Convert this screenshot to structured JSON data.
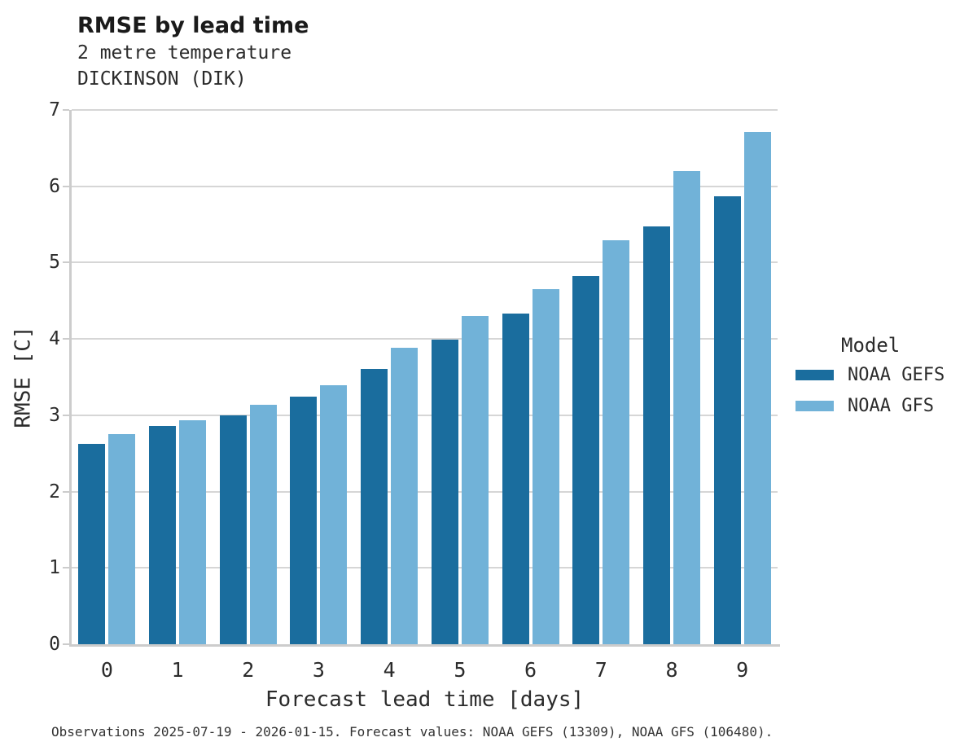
{
  "header": {
    "title": "RMSE by lead time",
    "subtitle1": "2 metre temperature",
    "subtitle2": "DICKINSON (DIK)"
  },
  "chart_data": {
    "type": "bar",
    "title": "RMSE by lead time",
    "subtitle": [
      "2 metre temperature",
      "DICKINSON (DIK)"
    ],
    "categories": [
      "0",
      "1",
      "2",
      "3",
      "4",
      "5",
      "6",
      "7",
      "8",
      "9"
    ],
    "series": [
      {
        "name": "NOAA GEFS",
        "color": "#1a6d9e",
        "values": [
          2.62,
          2.86,
          3.0,
          3.24,
          3.61,
          3.99,
          4.33,
          4.82,
          5.47,
          5.87
        ]
      },
      {
        "name": "NOAA GFS",
        "color": "#71b2d8",
        "values": [
          2.75,
          2.93,
          3.14,
          3.39,
          3.88,
          4.3,
          4.65,
          5.29,
          6.2,
          6.71
        ]
      }
    ],
    "xlabel": "Forecast lead time [days]",
    "ylabel": "RMSE [C]",
    "ylim": [
      0,
      7
    ],
    "yticks": [
      0,
      1,
      2,
      3,
      4,
      5,
      6,
      7
    ],
    "grid": true,
    "gridline_color": "#d6d6d6",
    "axis_spine_color": "#cccccc",
    "legend_title": "Model",
    "legend_position": "right"
  },
  "legend": {
    "title": "Model",
    "items": [
      {
        "label": "NOAA GEFS",
        "color": "#1a6d9e"
      },
      {
        "label": "NOAA GFS",
        "color": "#71b2d8"
      }
    ]
  },
  "caption": "Observations 2025-07-19 - 2026-01-15. Forecast values: NOAA GEFS (13309), NOAA GFS (106480)."
}
